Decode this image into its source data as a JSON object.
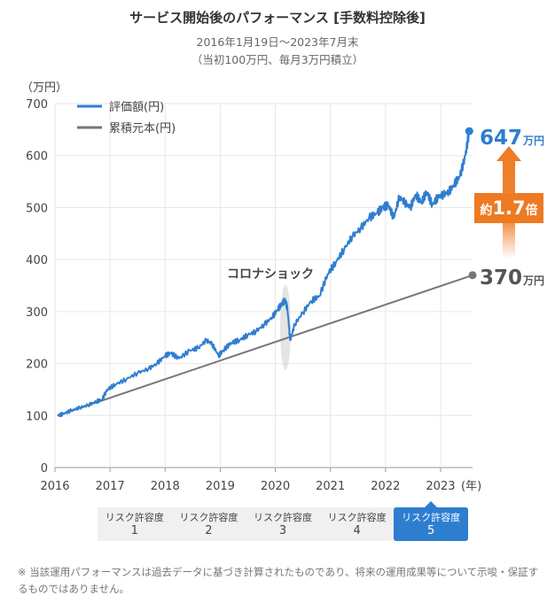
{
  "header": {
    "title": "サービス開始後のパフォーマンス [手数料控除後]",
    "subtitle1": "2016年1月19日～2023年7月末",
    "subtitle2": "（当初100万円、毎月3万円積立）"
  },
  "chart_data": {
    "type": "line",
    "ylabel": "（万円）",
    "xunit": "(年)",
    "ylim": [
      0,
      700
    ],
    "yticks": [
      0,
      100,
      200,
      300,
      400,
      500,
      600,
      700
    ],
    "xlim": [
      2016.0,
      2023.58
    ],
    "xticks": [
      "2016",
      "2017",
      "2018",
      "2019",
      "2020",
      "2021",
      "2022",
      "2023"
    ],
    "legend_position": "top-left",
    "series": [
      {
        "name": "評価額(円)",
        "color": "#2e7ed0",
        "x": [
          2016.05,
          2016.15,
          2016.3,
          2016.45,
          2016.6,
          2016.75,
          2016.85,
          2016.95,
          2017.1,
          2017.3,
          2017.5,
          2017.7,
          2017.85,
          2018.0,
          2018.1,
          2018.25,
          2018.45,
          2018.6,
          2018.75,
          2018.85,
          2018.97,
          2019.05,
          2019.2,
          2019.35,
          2019.5,
          2019.65,
          2019.8,
          2019.95,
          2020.05,
          2020.12,
          2020.18,
          2020.22,
          2020.27,
          2020.35,
          2020.5,
          2020.65,
          2020.8,
          2020.95,
          2021.1,
          2021.25,
          2021.4,
          2021.55,
          2021.7,
          2021.85,
          2021.95,
          2022.05,
          2022.15,
          2022.25,
          2022.35,
          2022.45,
          2022.55,
          2022.65,
          2022.75,
          2022.85,
          2022.95,
          2023.05,
          2023.15,
          2023.25,
          2023.35,
          2023.45,
          2023.52
        ],
        "values": [
          100,
          103,
          110,
          115,
          120,
          127,
          130,
          150,
          160,
          170,
          182,
          190,
          200,
          215,
          220,
          210,
          225,
          230,
          245,
          238,
          215,
          225,
          240,
          245,
          255,
          262,
          275,
          290,
          305,
          315,
          322,
          305,
          245,
          275,
          298,
          320,
          330,
          372,
          395,
          420,
          445,
          460,
          480,
          490,
          500,
          505,
          480,
          520,
          510,
          500,
          525,
          510,
          530,
          505,
          520,
          525,
          530,
          545,
          560,
          600,
          647
        ]
      },
      {
        "name": "累積元本(円)",
        "color": "#777777",
        "x": [
          2016.05,
          2016.75,
          2023.58
        ],
        "values": [
          100,
          125,
          370
        ]
      }
    ],
    "annotations": {
      "corona": "コロナショック",
      "end_value_value": "647",
      "end_value_unit": "万円",
      "principal_value": "370",
      "principal_unit": "万円",
      "multiplier_prefix": "約",
      "multiplier_value": "1.7",
      "multiplier_suffix": "倍"
    }
  },
  "risk_tabs": [
    {
      "label": "リスク許容度",
      "num": "1"
    },
    {
      "label": "リスク許容度",
      "num": "2"
    },
    {
      "label": "リスク許容度",
      "num": "3"
    },
    {
      "label": "リスク許容度",
      "num": "4"
    },
    {
      "label": "リスク許容度",
      "num": "5"
    }
  ],
  "risk_selected": 4,
  "footnote": "※ 当該運用パフォーマンスは過去データに基づき計算されたものであり、将来の運用成果等について示唆・保証するものではありません。"
}
